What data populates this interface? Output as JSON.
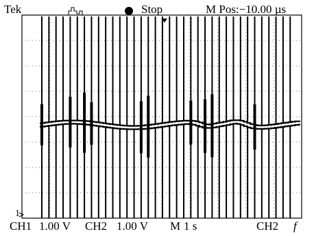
{
  "header": {
    "brand": "Tek",
    "status": "Stop",
    "position": "M Pos:−10.00 µs"
  },
  "markers": {
    "ch1_ground": "1"
  },
  "footer": {
    "ch1_label": "CH1",
    "ch1_scale": "1.00 V",
    "ch2_label": "CH2",
    "ch2_scale": "1.00 V",
    "time_label": "M",
    "time_scale": "1 s",
    "trigger_source": "CH2",
    "trigger_slope": "f"
  }
}
